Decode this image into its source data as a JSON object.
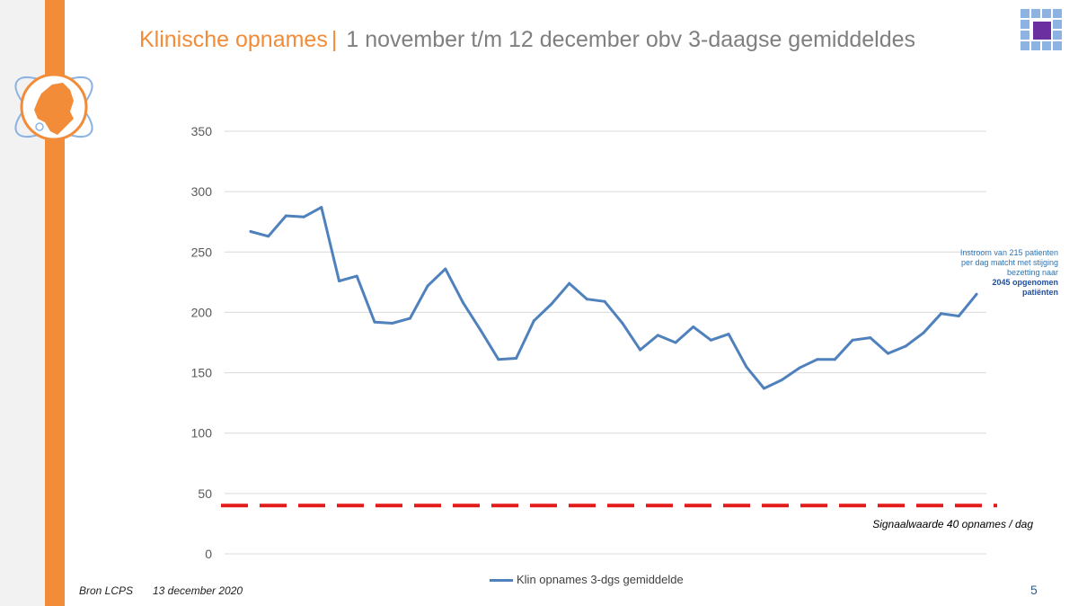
{
  "title": {
    "main": "Klinische opnames",
    "separator": "|",
    "sub": "1 november t/m 12 december obv 3-daagse gemiddeldes"
  },
  "annotation": {
    "line1": "Instroom van 215 patienten",
    "line2": "per dag matcht met stijging",
    "line3": "bezetting naar",
    "bold1": "2045 opgenomen",
    "bold2": "patiënten"
  },
  "signal_label": "Signaalwaarde 40 opnames / dag",
  "legend_label": "Klin opnames 3-dgs gemiddelde",
  "footer": {
    "source": "Bron LCPS",
    "date": "13 december 2020",
    "page": "5"
  },
  "colors": {
    "orange": "#f28c38",
    "line": "#4f81bd",
    "threshold": "#e31b1b",
    "grid": "#d9d9d9",
    "title_gray": "#7f7f7f",
    "logo_purple": "#6b2fa0",
    "logo_blue": "#8db3e2"
  },
  "icons": [
    "netherlands-map-logo-icon",
    "grid-square-logo-icon"
  ],
  "chart_data": {
    "type": "line",
    "title": "",
    "xlabel": "",
    "ylabel": "",
    "ylim": [
      0,
      350
    ],
    "yticks": [
      0,
      50,
      100,
      150,
      200,
      250,
      300,
      350
    ],
    "grid": true,
    "legend_position": "bottom",
    "series": [
      {
        "name": "Klin opnames 3-dgs gemiddelde",
        "values": [
          267,
          263,
          280,
          279,
          287,
          226,
          230,
          192,
          191,
          195,
          222,
          236,
          208,
          185,
          161,
          162,
          193,
          207,
          224,
          211,
          209,
          191,
          169,
          181,
          175,
          188,
          177,
          182,
          155,
          137,
          144,
          154,
          161,
          161,
          177,
          179,
          166,
          172,
          183,
          199,
          197,
          215
        ]
      }
    ],
    "threshold": {
      "value": 40,
      "label": "Signaalwaarde 40 opnames / dag",
      "style": "dashed"
    }
  }
}
